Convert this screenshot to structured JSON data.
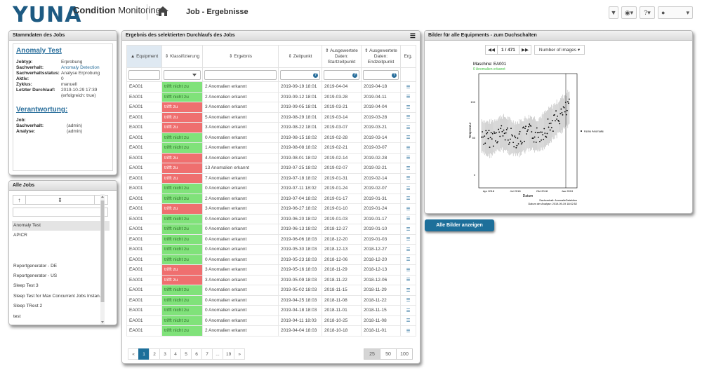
{
  "header": {
    "logo": "YUNA",
    "app_title_bold": "Condition",
    "app_title_rest": " Monitoring",
    "page_title": "Job - Ergebnisse",
    "toolbar": [
      "filter-icon",
      "help-circle-icon",
      "question-icon",
      "user-icon"
    ]
  },
  "stamm": {
    "title": "Stammdaten des Jobs",
    "job_name": "Anomaly Test",
    "fields": [
      {
        "k": "Jobtyp:",
        "v": "Erprobung",
        "blue": false
      },
      {
        "k": "Sachverhalt:",
        "v": "Anomaly Detection",
        "blue": true
      },
      {
        "k": "Sachverhaltsstatus:",
        "v": "Analyse Erprobung",
        "blue": false
      },
      {
        "k": "Aktiv:",
        "v": "0",
        "blue": false
      },
      {
        "k": "Zyklus:",
        "v": "manuell",
        "blue": false
      },
      {
        "k": "Letzter Durchlauf:",
        "v": "2019-10-29 17:39",
        "blue": false
      }
    ],
    "last_run_note": "(erfolgreich: true)",
    "resp_title": "Verantwortung:",
    "resp_fields": [
      {
        "k": "Job:",
        "v": ""
      },
      {
        "k": "Sachverhalt:",
        "v": "(admin)"
      },
      {
        "k": "Analyse:",
        "v": "(admin)"
      }
    ]
  },
  "jobs": {
    "title": "Alle Jobs",
    "ctrl_up": "↑",
    "ctrl_sort": "⇕",
    "ctrl_down": "↓",
    "items": [
      "Anomaly Test",
      "APICR",
      "",
      "",
      "Reportgenerator - DE",
      "Reportgenerator - US",
      "Sleep Test 3",
      "Sleep Test for Max Concurrent Jobs Instan...",
      "Sleep TRest 2",
      "test"
    ]
  },
  "result": {
    "title": "Ergebnis des selektierten Durchlaufs des Jobs",
    "columns": [
      "▲ Equipment",
      "⇕ Klassifizierung",
      "⇕ Ergebnis",
      "⇕ Zeitpunkt",
      "⇕ Ausgewertete Daten: Startzeitpunkt",
      "⇕ Ausgewertete Daten: Endzeitpunkt",
      "Erg."
    ],
    "rows": [
      [
        "EA001",
        "trifft nicht zu",
        "2 Anomalien erkannt",
        "2019-09-19 18:01",
        "2019-04-04",
        "2019-04-18"
      ],
      [
        "EA001",
        "trifft nicht zu",
        "2 Anomalien erkannt",
        "2019-09-12 18:01",
        "2019-03-28",
        "2019-04-11"
      ],
      [
        "EA001",
        "trifft zu",
        "3 Anomalien erkannt",
        "2019-09-05 18:01",
        "2019-03-21",
        "2019-04-04"
      ],
      [
        "EA001",
        "trifft zu",
        "5 Anomalien erkannt",
        "2019-08-29 18:01",
        "2019-03-14",
        "2019-03-28"
      ],
      [
        "EA001",
        "trifft zu",
        "3 Anomalien erkannt",
        "2019-08-22 18:01",
        "2019-03-07",
        "2019-03-21"
      ],
      [
        "EA001",
        "trifft nicht zu",
        "0 Anomalien erkannt",
        "2019-08-15 18:02",
        "2019-02-28",
        "2019-03-14"
      ],
      [
        "EA001",
        "trifft nicht zu",
        "1 Anomalien erkannt",
        "2019-08-08 18:02",
        "2019-02-21",
        "2019-03-07"
      ],
      [
        "EA001",
        "trifft zu",
        "4 Anomalien erkannt",
        "2019-08-01 18:02",
        "2019-02-14",
        "2019-02-28"
      ],
      [
        "EA001",
        "trifft zu",
        "13 Anomalien erkannt",
        "2019-07-25 18:02",
        "2019-02-07",
        "2019-02-21"
      ],
      [
        "EA001",
        "trifft zu",
        "7 Anomalien erkannt",
        "2019-07-18 18:02",
        "2019-01-31",
        "2019-02-14"
      ],
      [
        "EA001",
        "trifft nicht zu",
        "0 Anomalien erkannt",
        "2019-07-11 18:02",
        "2019-01-24",
        "2019-02-07"
      ],
      [
        "EA001",
        "trifft nicht zu",
        "2 Anomalien erkannt",
        "2019-07-04 18:02",
        "2019-01-17",
        "2019-01-31"
      ],
      [
        "EA001",
        "trifft zu",
        "3 Anomalien erkannt",
        "2019-06-27 18:02",
        "2019-01-10",
        "2019-01-24"
      ],
      [
        "EA001",
        "trifft nicht zu",
        "0 Anomalien erkannt",
        "2019-06-20 18:02",
        "2019-01-03",
        "2019-01-17"
      ],
      [
        "EA001",
        "trifft nicht zu",
        "0 Anomalien erkannt",
        "2019-06-13 18:02",
        "2018-12-27",
        "2019-01-10"
      ],
      [
        "EA001",
        "trifft nicht zu",
        "0 Anomalien erkannt",
        "2019-06-06 18:03",
        "2018-12-20",
        "2019-01-03"
      ],
      [
        "EA001",
        "trifft nicht zu",
        "0 Anomalien erkannt",
        "2019-05-30 18:03",
        "2018-12-13",
        "2018-12-27"
      ],
      [
        "EA001",
        "trifft nicht zu",
        "0 Anomalien erkannt",
        "2019-05-23 18:03",
        "2018-12-06",
        "2018-12-20"
      ],
      [
        "EA001",
        "trifft zu",
        "3 Anomalien erkannt",
        "2019-05-16 18:03",
        "2018-11-29",
        "2018-12-13"
      ],
      [
        "EA001",
        "trifft zu",
        "3 Anomalien erkannt",
        "2019-05-09 18:03",
        "2018-11-22",
        "2018-12-06"
      ],
      [
        "EA001",
        "trifft nicht zu",
        "0 Anomalien erkannt",
        "2019-05-02 18:03",
        "2018-11-15",
        "2018-11-29"
      ],
      [
        "EA001",
        "trifft nicht zu",
        "0 Anomalien erkannt",
        "2019-04-25 18:03",
        "2018-11-08",
        "2018-11-22"
      ],
      [
        "EA001",
        "trifft nicht zu",
        "0 Anomalien erkannt",
        "2019-04-18 18:03",
        "2018-11-01",
        "2018-11-15"
      ],
      [
        "EA001",
        "trifft nicht zu",
        "0 Anomalien erkannt",
        "2019-04-11 18:03",
        "2018-10-25",
        "2018-11-08"
      ],
      [
        "EA001",
        "trifft nicht zu",
        "2 Anomalien erkannt",
        "2019-04-04 18:03",
        "2018-10-18",
        "2018-11-01"
      ]
    ],
    "pager": [
      "«",
      "1",
      "2",
      "3",
      "4",
      "5",
      "6",
      "7",
      "...",
      "19",
      "»"
    ],
    "sizes": [
      "25",
      "50",
      "100"
    ]
  },
  "images": {
    "title": "Bilder für alle Equipments - zum Duchschalten",
    "prev": "◀◀",
    "counter": "1 / 471",
    "next": "▶▶",
    "number_btn": "Number of images ▾",
    "show_all": "Alle Bilder anzeigen",
    "plot": {
      "title": "Maschine: EA001",
      "subtitle": "0 Anomalien erkannt",
      "ylabel": "Temperatur",
      "xlabel": "Datum",
      "xticks": [
        "Apr 2018",
        "Jul 2018",
        "Okt 2018",
        "Jan 2019"
      ],
      "yticks": [
        "100",
        "50",
        "0"
      ],
      "legend": "Keine Anomalie",
      "footer1": "Sachverhalt: AnomalieDetektion",
      "footer2": "Datum der Analyse: 2019-09-19 18:02:52"
    }
  }
}
